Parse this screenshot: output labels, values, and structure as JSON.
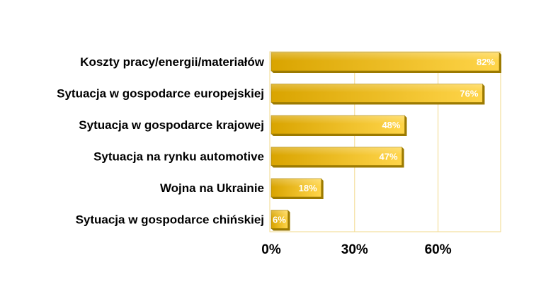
{
  "chart_data": {
    "type": "bar",
    "orientation": "horizontal",
    "categories": [
      "Koszty pracy/energii/materiałów",
      "Sytuacja w gospodarce europejskiej",
      "Sytuacja w gospodarce krajowej",
      "Sytuacja na rynku automotive",
      "Wojna na Ukrainie",
      "Sytuacja w gospodarce chińskiej"
    ],
    "values": [
      82,
      76,
      48,
      47,
      18,
      6
    ],
    "value_labels": [
      "82%",
      "76%",
      "48%",
      "47%",
      "18%",
      "6%"
    ],
    "xlim": [
      0,
      84
    ],
    "x_ticks": [
      0,
      30,
      60
    ],
    "x_tick_labels": [
      "0%",
      "30%",
      "60%"
    ],
    "grid": "vertical",
    "legend": "none",
    "colors": {
      "bar_light": "#ffd54a",
      "bar_dark": "#d9a400",
      "bar_edge": "#9c7a00",
      "grid": "#f2d98a",
      "frame": "#f2d98a"
    }
  }
}
